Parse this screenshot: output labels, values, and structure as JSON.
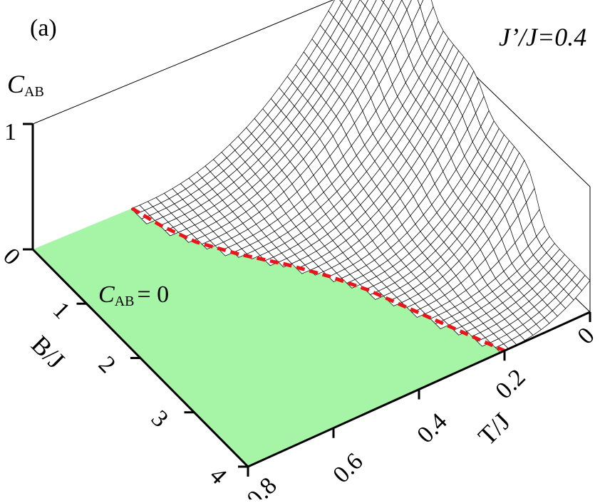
{
  "chart_data": {
    "type": "surface",
    "panel_label": "(a)",
    "parameter_label": "J’/J=0.4",
    "z_axis": {
      "label_main": "C",
      "label_sub": "AB",
      "ticks": [
        "0",
        "1"
      ],
      "range": [
        0,
        1
      ]
    },
    "b_axis": {
      "label": "B/J",
      "ticks": [
        "0",
        "1",
        "2",
        "3",
        "4"
      ],
      "range": [
        0,
        4
      ]
    },
    "t_axis": {
      "label": "T/J",
      "ticks": [
        "0",
        "0.2",
        "0.4",
        "0.6",
        "0.8"
      ],
      "range": [
        0,
        0.8
      ]
    },
    "zero_region": {
      "label_main": "C",
      "label_sub": "AB",
      "label_rest": "= 0",
      "color": "#a6f5a6"
    },
    "boundary_color": "#e8161b",
    "boundary_curve": {
      "B": [
        0.0,
        0.4,
        0.8,
        1.2,
        1.6,
        2.0,
        2.4,
        2.8,
        3.2,
        3.6,
        4.0
      ],
      "T_threshold": [
        0.57,
        0.55,
        0.52,
        0.47,
        0.41,
        0.36,
        0.32,
        0.29,
        0.26,
        0.23,
        0.2
      ]
    },
    "surface_description_points": {
      "peak": {
        "B": 0.0,
        "T": 0.0,
        "C": 1.55
      },
      "step_B": [
        1.0,
        2.0,
        3.0
      ]
    }
  }
}
